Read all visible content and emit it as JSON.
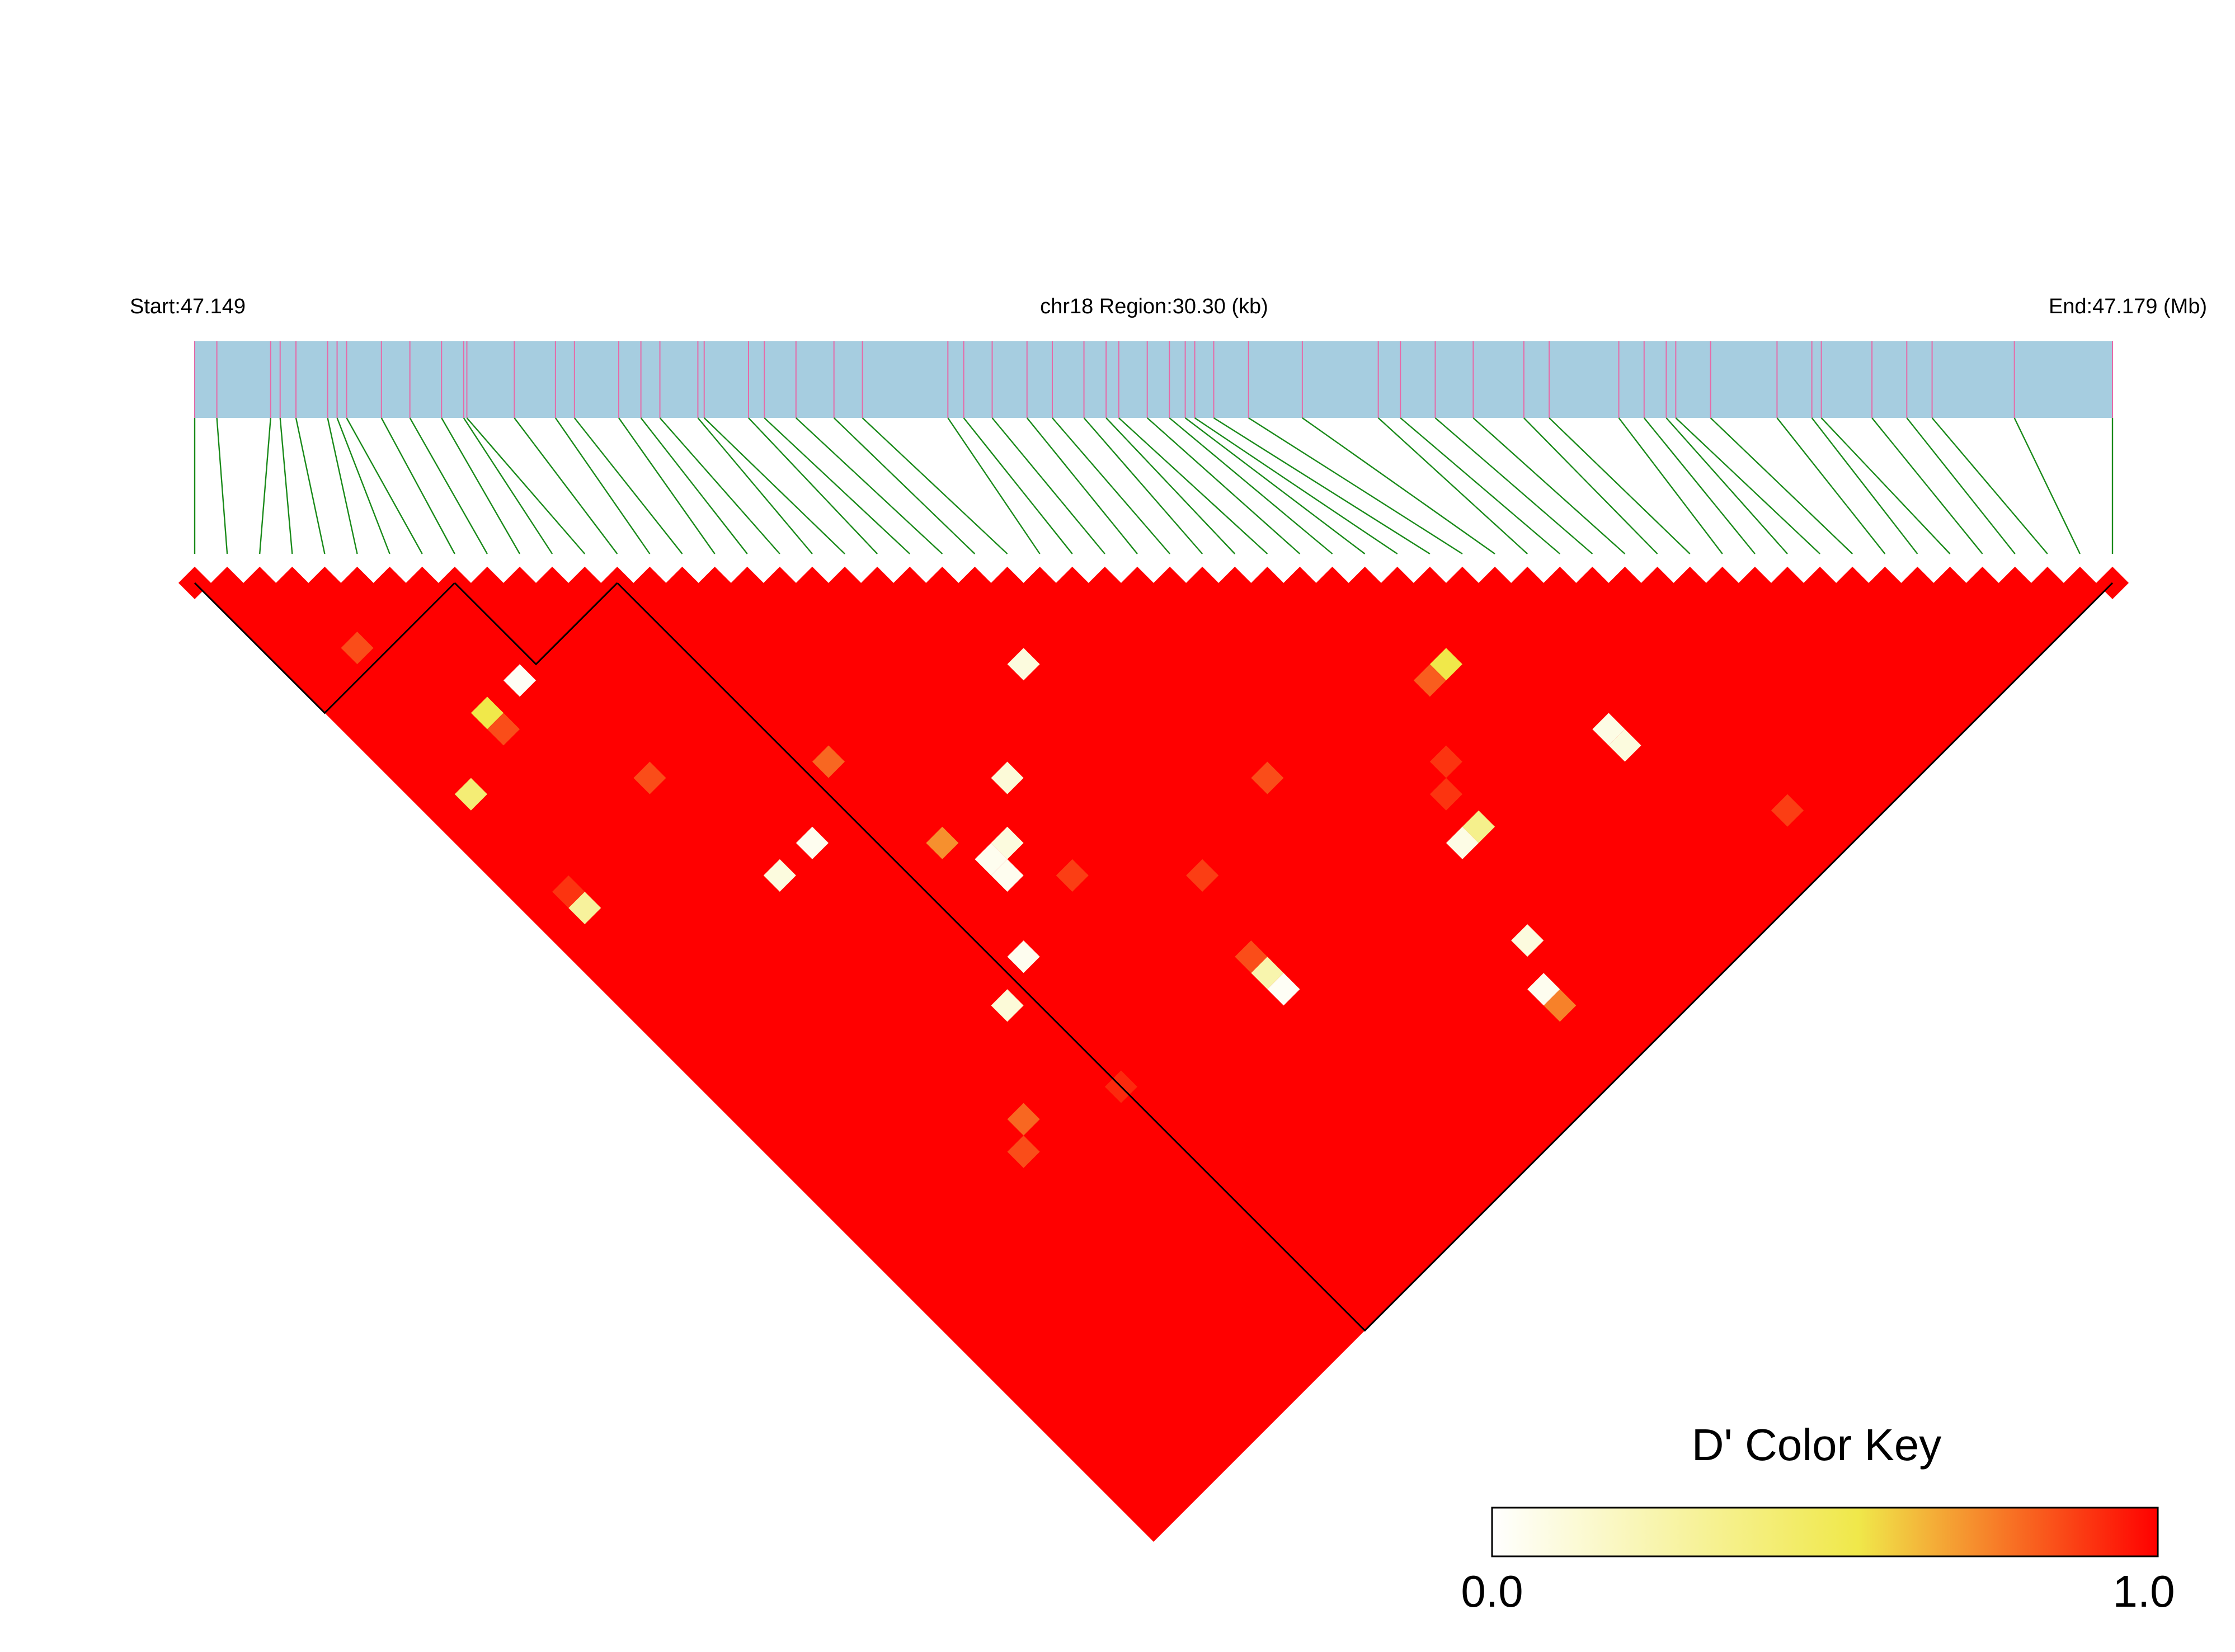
{
  "header": {
    "start_label": "Start:47.149",
    "region_label": "chr18 Region:30.30 (kb)",
    "end_label": "End:47.179 (Mb)"
  },
  "color_key": {
    "title": "D' Color Key",
    "min_label": "0.0",
    "max_label": "1.0",
    "stops": [
      "#ffffff",
      "#f0e84a",
      "#ff0000"
    ]
  },
  "colors": {
    "track": "#a6cde0",
    "snp_tick": "#e66aa8",
    "connector": "#1a8a1a",
    "ld_high": "#ff0000",
    "block_outline": "#000000"
  },
  "chart_data": {
    "type": "heatmap",
    "title": "",
    "chromosome": "chr18",
    "region_start_mb": 47.149,
    "region_end_mb": 47.179,
    "region_length_kb": 30.3,
    "n_snps": 60,
    "default_dprime": 1.0,
    "snp_positions_kb": [
      0.0,
      0.35,
      1.2,
      1.35,
      1.6,
      2.1,
      2.25,
      2.4,
      2.95,
      3.4,
      3.9,
      4.25,
      4.3,
      5.05,
      5.7,
      6.0,
      6.7,
      7.05,
      7.35,
      7.95,
      8.05,
      8.75,
      9.0,
      9.5,
      10.1,
      10.55,
      11.9,
      12.15,
      12.6,
      13.15,
      13.55,
      14.05,
      14.4,
      14.6,
      15.05,
      15.4,
      15.65,
      15.8,
      16.1,
      16.65,
      17.5,
      18.7,
      19.05,
      19.6,
      20.2,
      21.0,
      21.4,
      22.5,
      22.9,
      23.25,
      23.4,
      23.95,
      25.0,
      25.55,
      25.7,
      26.5,
      27.05,
      27.45,
      28.75,
      30.3
    ],
    "haplotype_blocks": [
      [
        1,
        9
      ],
      [
        9,
        14
      ],
      [
        14,
        60
      ]
    ],
    "cells": [
      {
        "i": 14,
        "j": 45,
        "d": 0.92
      },
      {
        "i": 10,
        "j": 43,
        "d": 0.8
      },
      {
        "i": 13,
        "j": 39,
        "d": 0.12
      },
      {
        "i": 15,
        "j": 38,
        "d": 0.05
      },
      {
        "i": 17,
        "j": 35,
        "d": 0.05
      },
      {
        "i": 17,
        "j": 34,
        "d": 0.05
      },
      {
        "i": 18,
        "j": 34,
        "d": 0.1
      },
      {
        "i": 16,
        "j": 32,
        "d": 0.72
      },
      {
        "i": 20,
        "j": 32,
        "d": 0.12
      },
      {
        "i": 24,
        "j": 29,
        "d": 0.1
      },
      {
        "i": 12,
        "j": 28,
        "d": 0.05
      },
      {
        "i": 10,
        "j": 28,
        "d": 0.1
      },
      {
        "i": 3,
        "j": 23,
        "d": 0.3
      },
      {
        "i": 3,
        "j": 22,
        "d": 0.9
      },
      {
        "i": 8,
        "j": 14,
        "d": 0.03
      },
      {
        "i": 6,
        "j": 14,
        "d": 0.55
      },
      {
        "i": 3,
        "j": 16,
        "d": 0.42
      },
      {
        "i": 22,
        "j": 47,
        "d": 0.03
      },
      {
        "i": 22,
        "j": 46,
        "d": 0.25
      },
      {
        "i": 22,
        "j": 45,
        "d": 0.85
      },
      {
        "i": 43,
        "j": 57,
        "d": 0.88
      },
      {
        "i": 30,
        "j": 56,
        "d": 0.75
      },
      {
        "i": 30,
        "j": 55,
        "d": 0.05
      },
      {
        "i": 31,
        "j": 53,
        "d": 0.1
      },
      {
        "i": 32,
        "j": 48,
        "d": 0.08
      },
      {
        "i": 33,
        "j": 48,
        "d": 0.35
      },
      {
        "i": 40,
        "j": 50,
        "d": 0.1
      },
      {
        "i": 40,
        "j": 49,
        "d": 0.08
      },
      {
        "i": 37,
        "j": 42,
        "d": 0.55
      },
      {
        "i": 36,
        "j": 42,
        "d": 0.82
      },
      {
        "i": 15,
        "j": 26,
        "d": 0.8
      },
      {
        "i": 9,
        "j": 44,
        "d": 0.85
      },
      {
        "i": 28,
        "j": 40,
        "d": 0.85
      },
      {
        "i": 9,
        "j": 21,
        "d": 0.85
      },
      {
        "i": 6,
        "j": 15,
        "d": 0.85
      },
      {
        "i": 4,
        "j": 8,
        "d": 0.85
      },
      {
        "i": 19,
        "j": 37,
        "d": 0.88
      },
      {
        "i": 23,
        "j": 41,
        "d": 0.88
      },
      {
        "i": 33,
        "j": 46,
        "d": 0.9
      },
      {
        "i": 34,
        "j": 45,
        "d": 0.9
      }
    ]
  }
}
